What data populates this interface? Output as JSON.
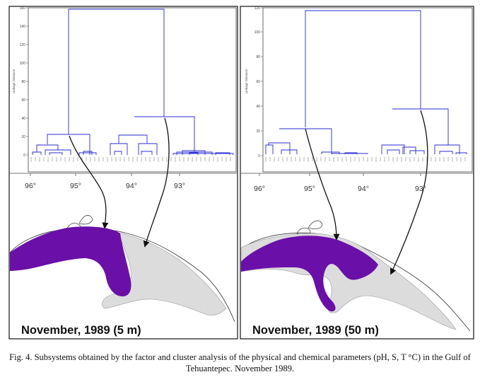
{
  "panels": [
    {
      "id": "left",
      "map_title": "November, 1989 (5 m)",
      "dendrogram": {
        "y_tick_labels": [
          "160",
          "140",
          "120",
          "100",
          "80",
          "60",
          "40",
          "20",
          "0"
        ],
        "y_axis_label": "Linkage Distance"
      },
      "longitude_labels": [
        "96°",
        "95°",
        "94°",
        "93°"
      ]
    },
    {
      "id": "right",
      "map_title": "November, 1989 (50 m)",
      "dendrogram": {
        "y_tick_labels": [
          "120",
          "100",
          "80",
          "60",
          "40",
          "20",
          "0"
        ],
        "y_axis_label": "Linkage Distance"
      },
      "longitude_labels": [
        "96°",
        "95°",
        "94°",
        "93°"
      ]
    }
  ],
  "caption": "Fig. 4. Subsystems obtained by the factor and cluster analysis of the physical and chemical parameters (pH, S, T °C) in the Gulf of Tehuantepec. November 1989.",
  "colors": {
    "dendrogram_lines": "#2b2bd6",
    "subsystem_purple": "#6a0fa8",
    "subsystem_grey": "#dcdcdc",
    "arrows": "#111111"
  }
}
